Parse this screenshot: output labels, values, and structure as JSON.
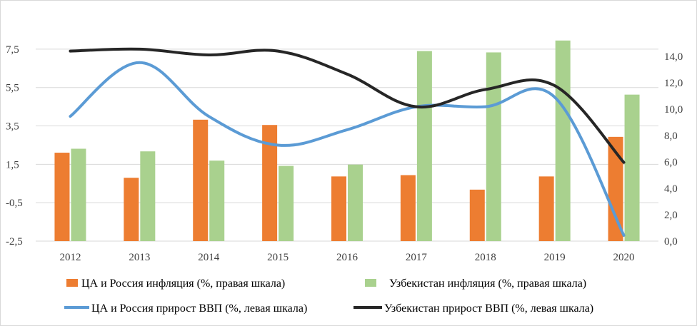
{
  "chart_data": {
    "type": "bar",
    "categories": [
      "2012",
      "2013",
      "2014",
      "2015",
      "2016",
      "2017",
      "2018",
      "2019",
      "2020"
    ],
    "left_axis": {
      "ylim": [
        -2.5,
        8.5
      ],
      "ticks": [
        "7,5",
        "5,5",
        "3,5",
        "1,5",
        "-0,5",
        "-2,5"
      ],
      "tick_values": [
        7.5,
        5.5,
        3.5,
        1.5,
        -0.5,
        -2.5
      ]
    },
    "right_axis": {
      "ylim": [
        0,
        16
      ],
      "ticks": [
        "14,0",
        "12,0",
        "10,0",
        "8,0",
        "6,0",
        "4,0",
        "2,0",
        "0,0"
      ],
      "tick_values": [
        14,
        12,
        10,
        8,
        6,
        4,
        2,
        0
      ]
    },
    "series": [
      {
        "name": "ЦА и Россия инфляция  (%, правая шкала)",
        "type": "bar",
        "axis": "right",
        "color": "#ED7D31",
        "values": [
          6.7,
          4.8,
          9.2,
          8.8,
          4.9,
          5.0,
          3.9,
          4.9,
          7.9
        ]
      },
      {
        "name": "Узбекистан инфляция  (%, правая шкала)",
        "type": "bar",
        "axis": "right",
        "color": "#A9D18E",
        "values": [
          7.0,
          6.8,
          6.1,
          5.7,
          5.8,
          14.4,
          14.3,
          15.2,
          11.1
        ]
      },
      {
        "name": "ЦА и Россия прирост ВВП (%, левая шкала)",
        "type": "line",
        "axis": "left",
        "color": "#5B9BD5",
        "values": [
          4.0,
          6.8,
          4.0,
          2.5,
          3.3,
          4.5,
          4.5,
          5.0,
          -2.2
        ]
      },
      {
        "name": "Узбекистан прирост ВВП (%, левая шкала)",
        "type": "line",
        "axis": "left",
        "color": "#262626",
        "values": [
          7.4,
          7.5,
          7.2,
          7.4,
          6.2,
          4.5,
          5.4,
          5.6,
          1.6
        ]
      }
    ],
    "grid": true,
    "legend_position": "bottom"
  }
}
